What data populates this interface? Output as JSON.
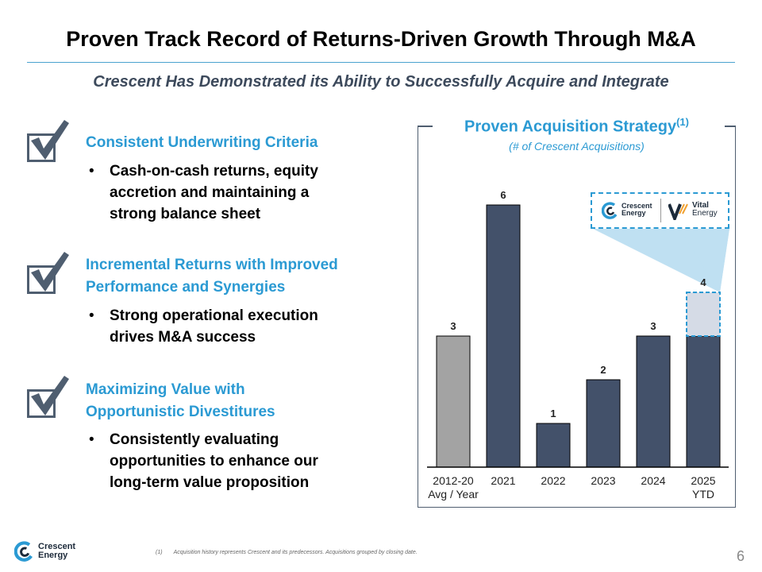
{
  "title": "Proven Track Record of Returns-Driven Growth Through M&A",
  "subtitle": "Crescent Has Demonstrated its Ability to Successfully Acquire and Integrate",
  "sections": [
    {
      "title_line1": "Consistent Underwriting Criteria",
      "title_line2": "",
      "bullet_lines": [
        "Cash-on-cash returns, equity",
        "accretion and maintaining a",
        "strong balance sheet"
      ]
    },
    {
      "title_line1": "Incremental Returns with Improved",
      "title_line2": "Performance and Synergies",
      "bullet_lines": [
        "Strong operational execution",
        "drives M&A success"
      ]
    },
    {
      "title_line1": "Maximizing Value with",
      "title_line2": "Opportunistic Divestitures",
      "bullet_lines": [
        "Consistently evaluating",
        "opportunities to enhance our",
        "long-term value proposition"
      ]
    }
  ],
  "bullet_glyph": "•",
  "chart_header": {
    "title": "Proven Acquisition Strategy",
    "title_sup": "(1)",
    "subtitle": "(# of Crescent Acquisitions)"
  },
  "chart_data": {
    "type": "bar",
    "title": "Proven Acquisition Strategy",
    "subtitle": "(# of Crescent Acquisitions)",
    "categories": [
      [
        "2012-20",
        "Avg / Year"
      ],
      [
        "2021"
      ],
      [
        "2022"
      ],
      [
        "2023"
      ],
      [
        "2024"
      ],
      [
        "2025",
        "YTD"
      ]
    ],
    "values": [
      3,
      6,
      1,
      2,
      3,
      4
    ],
    "stack_base": [
      3,
      6,
      1,
      2,
      3,
      3
    ],
    "stack_pending": [
      0,
      0,
      0,
      0,
      0,
      1
    ],
    "pending_label": "Vital Energy",
    "ylim": [
      0,
      6.5
    ],
    "grid": false,
    "colors": {
      "historical": "#a3a3a3",
      "bar": "#43516a",
      "pending": "#d5dbe6",
      "pending_border": "#2b9ad3",
      "callout": "#bfe0f2"
    }
  },
  "logos": {
    "crescent_line1": "Crescent",
    "crescent_line2": "Energy",
    "vital_line1": "Vital",
    "vital_line2": "Energy"
  },
  "footer": {
    "footnote_num": "(1)",
    "footnote_text": "Acquisition history represents Crescent and its predecessors. Acquisitions grouped by closing date.",
    "page_number": "6",
    "brand_line1": "Crescent",
    "brand_line2": "Energy"
  },
  "icons": [
    "checkbox-icon",
    "crescent-logo-icon",
    "vital-logo-icon"
  ]
}
